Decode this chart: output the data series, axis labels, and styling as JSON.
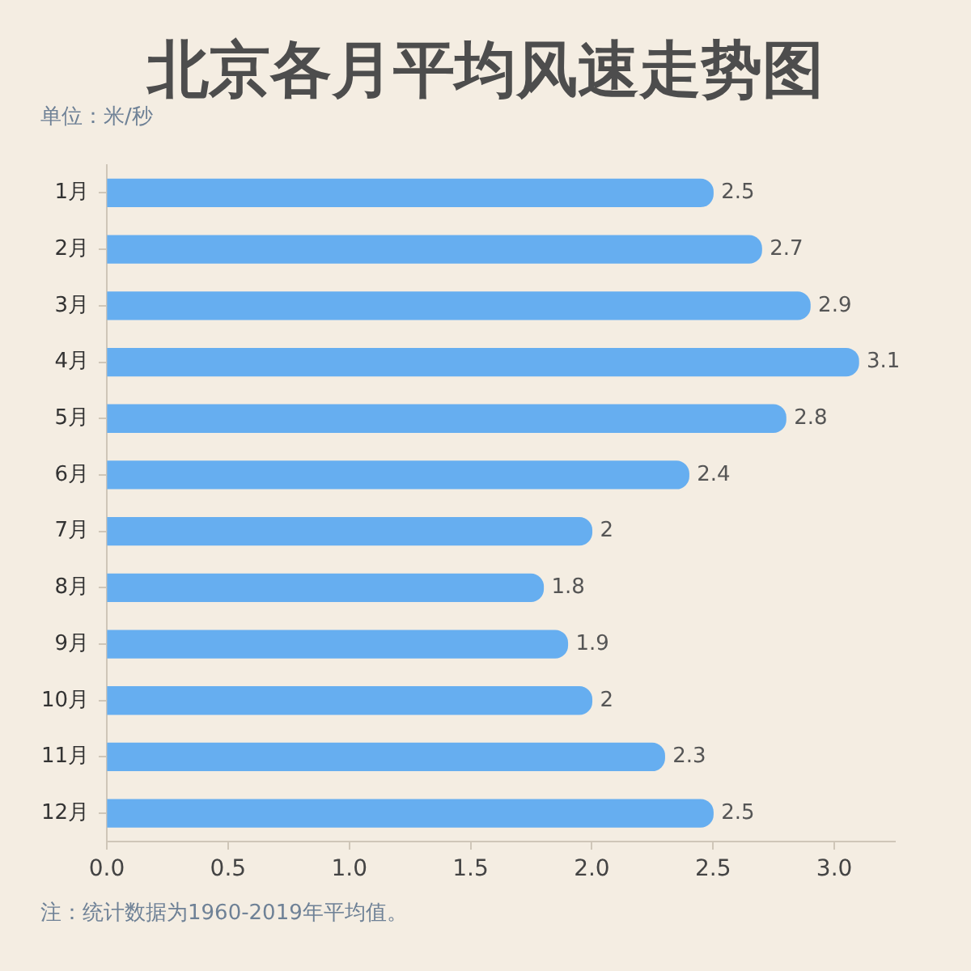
{
  "chart_data": {
    "type": "bar",
    "orientation": "horizontal",
    "title": "北京各月平均风速走势图",
    "subtitle": "单位：米/秒",
    "annotations": [
      "注：统计数据为1960-2019年平均值。"
    ],
    "categories": [
      "1月",
      "2月",
      "3月",
      "4月",
      "5月",
      "6月",
      "7月",
      "8月",
      "9月",
      "10月",
      "11月",
      "12月"
    ],
    "values": [
      2.5,
      2.7,
      2.9,
      3.1,
      2.8,
      2.4,
      2,
      1.8,
      1.9,
      2,
      2.3,
      2.5
    ],
    "color": "#66aef0",
    "xlim": [
      0,
      3.25
    ],
    "xticks": [
      {
        "value": 0,
        "label": "0.0"
      },
      0.5,
      {
        "value": 1,
        "label": "1.0"
      },
      1.5,
      {
        "value": 2,
        "label": "2.0"
      },
      2.5,
      {
        "value": 3,
        "label": "3.0"
      }
    ],
    "data_labels": true,
    "legend": false,
    "grid": false
  }
}
